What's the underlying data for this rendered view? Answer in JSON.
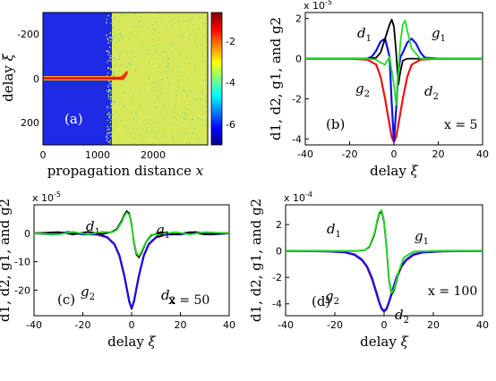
{
  "chart_data": [
    {
      "id": "a",
      "type": "heatmap",
      "panel_label": "(a)",
      "xlabel": "propagation distance",
      "xlabel_var": "x",
      "ylabel": "delay",
      "ylabel_var": "ξ",
      "xlim": [
        0,
        3000
      ],
      "ylim": [
        -300,
        300
      ],
      "y_inverted": true,
      "xticks": [
        0,
        1000,
        2000
      ],
      "yticks": [
        -200,
        0,
        200
      ],
      "colorbar": {
        "range": [
          -7,
          -0.6
        ],
        "ticks": [
          -2,
          -4,
          -6
        ],
        "colormap": "jet"
      },
      "regions": [
        {
          "name": "pulse",
          "x": [
            0,
            1420
          ],
          "delay_center": 0,
          "level": -1
        },
        {
          "name": "background-low",
          "x": [
            0,
            1300
          ],
          "level": -6.5
        },
        {
          "name": "background-noise",
          "x": [
            1300,
            3000
          ],
          "level": -3.4
        }
      ],
      "colors": {
        "low": "#1e2ae6",
        "mid": "#d6e85a",
        "high": "#b0000a"
      }
    },
    {
      "id": "b",
      "type": "line",
      "panel_label": "(b)",
      "scale_label": "x 10",
      "scale_exp": "-5",
      "xlabel": "delay",
      "xlabel_var": "ξ",
      "ylabel": "d1, d2, g1, and g2",
      "xlim": [
        -40,
        40
      ],
      "ylim": [
        -4.3,
        2.3
      ],
      "xticks": [
        -40,
        -20,
        0,
        20,
        40
      ],
      "yticks": [
        -4,
        -2,
        0,
        2
      ],
      "annotation": "x = 5",
      "series": [
        {
          "name": "d1",
          "color": "#000000",
          "x": [
            -40,
            -20,
            -12,
            -8,
            -6,
            -4,
            -2,
            -1,
            0,
            1,
            2,
            3,
            4,
            6,
            10,
            20,
            40
          ],
          "y": [
            0,
            0,
            0,
            0.05,
            0.3,
            1.0,
            1.7,
            1.95,
            1.6,
            0.3,
            -1.3,
            -0.6,
            -0.1,
            0,
            0,
            0,
            0
          ]
        },
        {
          "name": "g1",
          "color": "#22dd22",
          "x": [
            -40,
            -20,
            -12,
            -8,
            -6,
            -4,
            -2,
            0,
            1,
            2,
            3,
            4,
            5,
            6,
            8,
            12,
            20,
            40
          ],
          "y": [
            0,
            0,
            0,
            -0.05,
            -0.2,
            -0.3,
            0.1,
            -1.3,
            -2.3,
            -0.6,
            0.9,
            1.7,
            1.9,
            1.4,
            0.5,
            0,
            0,
            0
          ]
        },
        {
          "name": "g2",
          "color": "#ee1111",
          "x": [
            -40,
            -20,
            -12,
            -8,
            -6,
            -4,
            -2,
            -1,
            0,
            1,
            2,
            4,
            6,
            8,
            12,
            20,
            40
          ],
          "y": [
            0,
            0,
            -0.05,
            -0.3,
            -0.9,
            -2.0,
            -3.3,
            -3.9,
            -4.15,
            -3.9,
            -3.3,
            -2.0,
            -0.9,
            -0.3,
            -0.05,
            0,
            0
          ]
        },
        {
          "name": "d2",
          "color": "#1111ee",
          "x": [
            -40,
            -20,
            -12,
            -10,
            -8,
            -6,
            -4,
            -2,
            -1,
            0,
            1,
            2,
            3,
            4,
            6,
            8,
            10,
            12,
            14,
            20,
            40
          ],
          "y": [
            0,
            0,
            0,
            0.1,
            0.4,
            0.85,
            1.0,
            0.1,
            -2.2,
            -4.15,
            -2.5,
            -0.6,
            0.1,
            0.3,
            0.8,
            1.0,
            0.75,
            0.3,
            0.05,
            0,
            0
          ]
        }
      ],
      "labels": [
        {
          "text": "d",
          "sub": "1",
          "series": "d1"
        },
        {
          "text": "g",
          "sub": "1",
          "series": "g1"
        },
        {
          "text": "g",
          "sub": "2",
          "series": "g2"
        },
        {
          "text": "d",
          "sub": "2",
          "series": "d2"
        }
      ]
    },
    {
      "id": "c",
      "type": "line",
      "panel_label": "(c)",
      "scale_label": "x 10",
      "scale_exp": "-5",
      "xlabel": "delay",
      "xlabel_var": "ξ",
      "ylabel": "d1, d2, g1, and g2",
      "xlim": [
        -40,
        40
      ],
      "ylim": [
        -29,
        10
      ],
      "xticks": [
        -40,
        -20,
        0,
        20,
        40
      ],
      "yticks": [
        -20,
        -10,
        0
      ],
      "annotation": "x = 50",
      "series": [
        {
          "name": "d1",
          "color": "#000000",
          "x": [
            -40,
            -30,
            -24,
            -18,
            -12,
            -8,
            -6,
            -4,
            -3,
            -2,
            -1,
            0,
            1,
            2,
            3,
            4,
            6,
            8,
            12,
            18,
            24,
            30,
            40
          ],
          "y": [
            0,
            0.4,
            -0.4,
            0.5,
            -0.3,
            0.5,
            1.5,
            4.5,
            6.5,
            7.8,
            7.0,
            3.0,
            -3.5,
            -7.5,
            -8.5,
            -7.0,
            -3.0,
            -0.8,
            0.4,
            -0.4,
            0.4,
            -0.4,
            0
          ]
        },
        {
          "name": "g1",
          "color": "#22dd22",
          "x": [
            -40,
            -30,
            -24,
            -18,
            -12,
            -8,
            -6,
            -4,
            -3,
            -2,
            -1,
            0,
            1,
            2,
            3,
            4,
            6,
            8,
            12,
            18,
            24,
            30,
            40
          ],
          "y": [
            0,
            -0.4,
            0.5,
            -0.4,
            0.5,
            0.3,
            1.2,
            4.0,
            6.0,
            7.3,
            6.5,
            2.5,
            -3.0,
            -7.0,
            -8.0,
            -6.5,
            -2.8,
            -0.5,
            -0.3,
            0.4,
            -0.4,
            0.4,
            0
          ]
        },
        {
          "name": "g2",
          "color": "#ee1111",
          "x": [
            -40,
            -28,
            -20,
            -14,
            -10,
            -7,
            -5,
            -3,
            -2,
            -1,
            0,
            1,
            2,
            3,
            5,
            7,
            10,
            14,
            20,
            28,
            40
          ],
          "y": [
            0,
            0.2,
            -0.3,
            -0.5,
            -1.5,
            -4.0,
            -8.0,
            -15.0,
            -19.5,
            -24.0,
            -26.5,
            -24.0,
            -19.5,
            -15.0,
            -8.0,
            -4.0,
            -1.5,
            -0.5,
            -0.3,
            0.2,
            0
          ]
        },
        {
          "name": "d2",
          "color": "#1111ee",
          "x": [
            -40,
            -32,
            -26,
            -20,
            -14,
            -10,
            -7,
            -5,
            -3,
            -2,
            -1,
            0,
            1,
            2,
            3,
            5,
            7,
            10,
            14,
            20,
            26,
            32,
            40
          ],
          "y": [
            0,
            -0.4,
            0.4,
            -0.4,
            -0.3,
            -1.4,
            -3.8,
            -7.8,
            -14.8,
            -19.3,
            -23.8,
            -26.5,
            -23.8,
            -19.3,
            -14.8,
            -7.8,
            -3.8,
            -1.4,
            -0.3,
            -0.4,
            0.4,
            -0.4,
            0
          ]
        }
      ],
      "labels": [
        {
          "text": "d",
          "sub": "1",
          "series": "d1"
        },
        {
          "text": "g",
          "sub": "1",
          "series": "g1"
        },
        {
          "text": "g",
          "sub": "2",
          "series": "g2"
        },
        {
          "text": "d",
          "sub": "2",
          "series": "d2"
        }
      ]
    },
    {
      "id": "d",
      "type": "line",
      "panel_label": "(d)",
      "scale_label": "x 10",
      "scale_exp": "-4",
      "xlabel": "delay",
      "xlabel_var": "ξ",
      "ylabel": "d1, d2, g1, and g2",
      "xlim": [
        -40,
        40
      ],
      "ylim": [
        -4.9,
        3.5
      ],
      "xticks": [
        -40,
        -20,
        0,
        20,
        40
      ],
      "yticks": [
        -4,
        -2,
        0,
        2
      ],
      "annotation": "x = 100",
      "series": [
        {
          "name": "d1",
          "color": "#000000",
          "x": [
            -40,
            -20,
            -12,
            -8,
            -6,
            -4,
            -3,
            -2,
            -1,
            0,
            1,
            2,
            3,
            4,
            6,
            8,
            12,
            20,
            40
          ],
          "y": [
            0,
            0,
            0,
            0.05,
            0.3,
            1.2,
            2.1,
            2.8,
            3.0,
            2.2,
            0.2,
            -2.2,
            -3.3,
            -3.0,
            -1.6,
            -0.5,
            -0.05,
            0,
            0
          ]
        },
        {
          "name": "g1",
          "color": "#22dd22",
          "x": [
            -40,
            -20,
            -12,
            -8,
            -6,
            -4,
            -3,
            -2,
            -1,
            0,
            1,
            2,
            3,
            4,
            6,
            8,
            12,
            20,
            40
          ],
          "y": [
            0,
            0,
            0,
            0.05,
            0.35,
            1.3,
            2.2,
            2.9,
            3.1,
            2.3,
            0.3,
            -2.1,
            -3.2,
            -2.9,
            -1.5,
            -0.5,
            -0.05,
            0,
            0
          ]
        },
        {
          "name": "g2",
          "color": "#ee1111",
          "x": [
            -40,
            -24,
            -16,
            -12,
            -9,
            -7,
            -5,
            -3,
            -2,
            -1,
            0,
            1,
            2,
            3,
            5,
            7,
            9,
            12,
            16,
            24,
            40
          ],
          "y": [
            0,
            -0.02,
            -0.1,
            -0.3,
            -0.7,
            -1.2,
            -2.1,
            -3.3,
            -3.9,
            -4.4,
            -4.6,
            -4.4,
            -3.9,
            -3.3,
            -2.1,
            -1.2,
            -0.7,
            -0.3,
            -0.1,
            -0.02,
            0
          ]
        },
        {
          "name": "d2",
          "color": "#1111ee",
          "x": [
            -40,
            -24,
            -16,
            -12,
            -9,
            -7,
            -5,
            -3,
            -2,
            -1,
            0,
            1,
            2,
            3,
            5,
            7,
            9,
            12,
            16,
            24,
            40
          ],
          "y": [
            0,
            -0.02,
            -0.1,
            -0.25,
            -0.65,
            -1.15,
            -2.0,
            -3.2,
            -3.85,
            -4.35,
            -4.55,
            -4.35,
            -3.85,
            -3.2,
            -2.0,
            -1.15,
            -0.65,
            -0.25,
            -0.1,
            -0.02,
            0
          ]
        }
      ],
      "labels": [
        {
          "text": "d",
          "sub": "1",
          "series": "d1"
        },
        {
          "text": "g",
          "sub": "1",
          "series": "g1"
        },
        {
          "text": "g",
          "sub": "2",
          "series": "g2"
        },
        {
          "text": "d",
          "sub": "2",
          "series": "d2"
        }
      ]
    }
  ]
}
